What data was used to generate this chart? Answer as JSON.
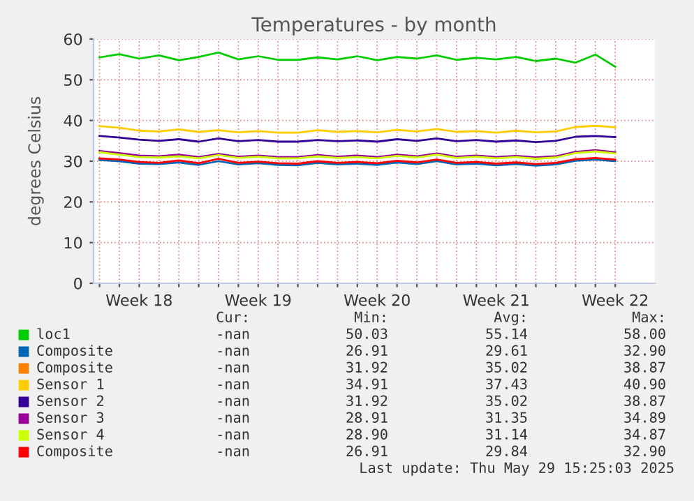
{
  "chart_data": {
    "type": "line",
    "title": "Temperatures - by month",
    "ylabel": "degrees Celsius",
    "categories": [
      null,
      null,
      "Week 18",
      null,
      null,
      null,
      null,
      null,
      "Week 19",
      null,
      null,
      null,
      null,
      null,
      "Week 20",
      null,
      null,
      null,
      null,
      null,
      "Week 21",
      null,
      null,
      null,
      null,
      null,
      "Week 22"
    ],
    "series": [
      {
        "name": "loc1",
        "color": "#00cc00",
        "values": [
          55.5,
          56.3,
          55.2,
          56.0,
          54.8,
          55.6,
          56.7,
          55.0,
          55.8,
          54.9,
          54.9,
          55.5,
          55.0,
          55.8,
          54.8,
          55.6,
          55.2,
          56.0,
          54.9,
          55.4,
          55.0,
          55.6,
          54.6,
          55.2,
          54.2,
          56.2,
          53.2
        ]
      },
      {
        "name": "Composite",
        "color": "#0066b3",
        "values": [
          30.3,
          30.0,
          29.4,
          29.3,
          29.7,
          29.1,
          30.0,
          29.2,
          29.5,
          29.1,
          29.0,
          29.6,
          29.2,
          29.4,
          29.1,
          29.7,
          29.3,
          30.0,
          29.2,
          29.4,
          29.0,
          29.3,
          28.9,
          29.2,
          30.1,
          30.4,
          30.0
        ]
      },
      {
        "name": "Composite",
        "color": "#ff8000",
        "values": [
          null,
          null,
          null,
          null,
          null,
          null,
          null,
          null,
          null,
          null,
          null,
          null,
          null,
          null,
          null,
          null,
          null,
          null,
          null,
          null,
          null,
          null,
          null,
          null,
          null,
          null,
          null
        ]
      },
      {
        "name": "Sensor 1",
        "color": "#ffcc00",
        "values": [
          38.6,
          38.2,
          37.5,
          37.3,
          37.8,
          37.2,
          37.6,
          37.1,
          37.4,
          37.0,
          37.0,
          37.6,
          37.2,
          37.4,
          37.1,
          37.7,
          37.3,
          37.9,
          37.2,
          37.4,
          37.0,
          37.5,
          37.1,
          37.3,
          38.4,
          38.7,
          38.3
        ]
      },
      {
        "name": "Sensor 2",
        "color": "#330099",
        "values": [
          36.2,
          35.8,
          35.3,
          35.0,
          35.4,
          34.8,
          35.6,
          34.9,
          35.2,
          34.8,
          34.8,
          35.2,
          34.9,
          35.1,
          34.8,
          35.4,
          35.0,
          35.6,
          34.9,
          35.2,
          34.8,
          35.1,
          34.7,
          35.0,
          36.0,
          36.2,
          35.9
        ]
      },
      {
        "name": "Sensor 3",
        "color": "#990099",
        "values": [
          32.5,
          32.0,
          31.4,
          31.2,
          31.6,
          31.0,
          31.8,
          31.1,
          31.4,
          31.0,
          31.0,
          31.5,
          31.1,
          31.4,
          31.0,
          31.6,
          31.2,
          31.9,
          31.1,
          31.4,
          31.0,
          31.3,
          30.9,
          31.2,
          32.3,
          32.7,
          32.2
        ]
      },
      {
        "name": "Sensor 4",
        "color": "#ccff00",
        "values": [
          32.2,
          31.6,
          31.0,
          30.9,
          31.2,
          30.7,
          31.5,
          30.8,
          31.1,
          30.7,
          30.7,
          31.2,
          30.8,
          31.0,
          30.7,
          31.3,
          30.9,
          31.6,
          30.8,
          31.1,
          30.7,
          31.0,
          30.6,
          30.9,
          32.0,
          32.4,
          31.9
        ]
      },
      {
        "name": "Composite",
        "color": "#ff0000",
        "values": [
          30.7,
          30.4,
          29.8,
          29.6,
          30.2,
          29.5,
          30.6,
          29.6,
          29.9,
          29.5,
          29.4,
          30.0,
          29.6,
          29.8,
          29.5,
          30.1,
          29.7,
          30.4,
          29.6,
          29.8,
          29.4,
          29.7,
          29.3,
          29.6,
          30.5,
          30.8,
          30.4
        ]
      }
    ],
    "ylim": [
      0,
      60
    ],
    "yticks": [
      0,
      10,
      20,
      30,
      40,
      50,
      60
    ],
    "grid": true,
    "legend": "bottom",
    "marker": "none",
    "line_style": "solid",
    "annotations": [
      "Cur:",
      "Min:",
      "Avg:",
      "Max:",
      "-nan",
      "50.03",
      "55.14",
      "58.00",
      "-nan",
      "26.91",
      "29.61",
      "32.90",
      "-nan",
      "31.92",
      "35.02",
      "38.87",
      "-nan",
      "34.91",
      "37.43",
      "40.90",
      "-nan",
      "31.92",
      "35.02",
      "38.87",
      "-nan",
      "28.91",
      "31.35",
      "34.89",
      "-nan",
      "28.90",
      "31.14",
      "34.87",
      "-nan",
      "26.91",
      "29.84",
      "32.90",
      "Last update: Thu May 29 15:25:03 2025"
    ]
  }
}
